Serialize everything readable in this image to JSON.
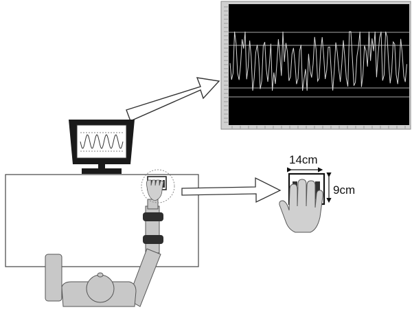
{
  "hand_unit": {
    "width_label": "14cm",
    "height_label": "9cm"
  },
  "colors": {
    "scope_background": "#000000",
    "trace": "#d8d8d8",
    "body_fill": "#c8c8c8",
    "outline": "#555555",
    "cuff": "#2e2e2e"
  },
  "icons": [
    "monitor-icon",
    "hand-icon",
    "person-icon",
    "arrow-icon"
  ]
}
